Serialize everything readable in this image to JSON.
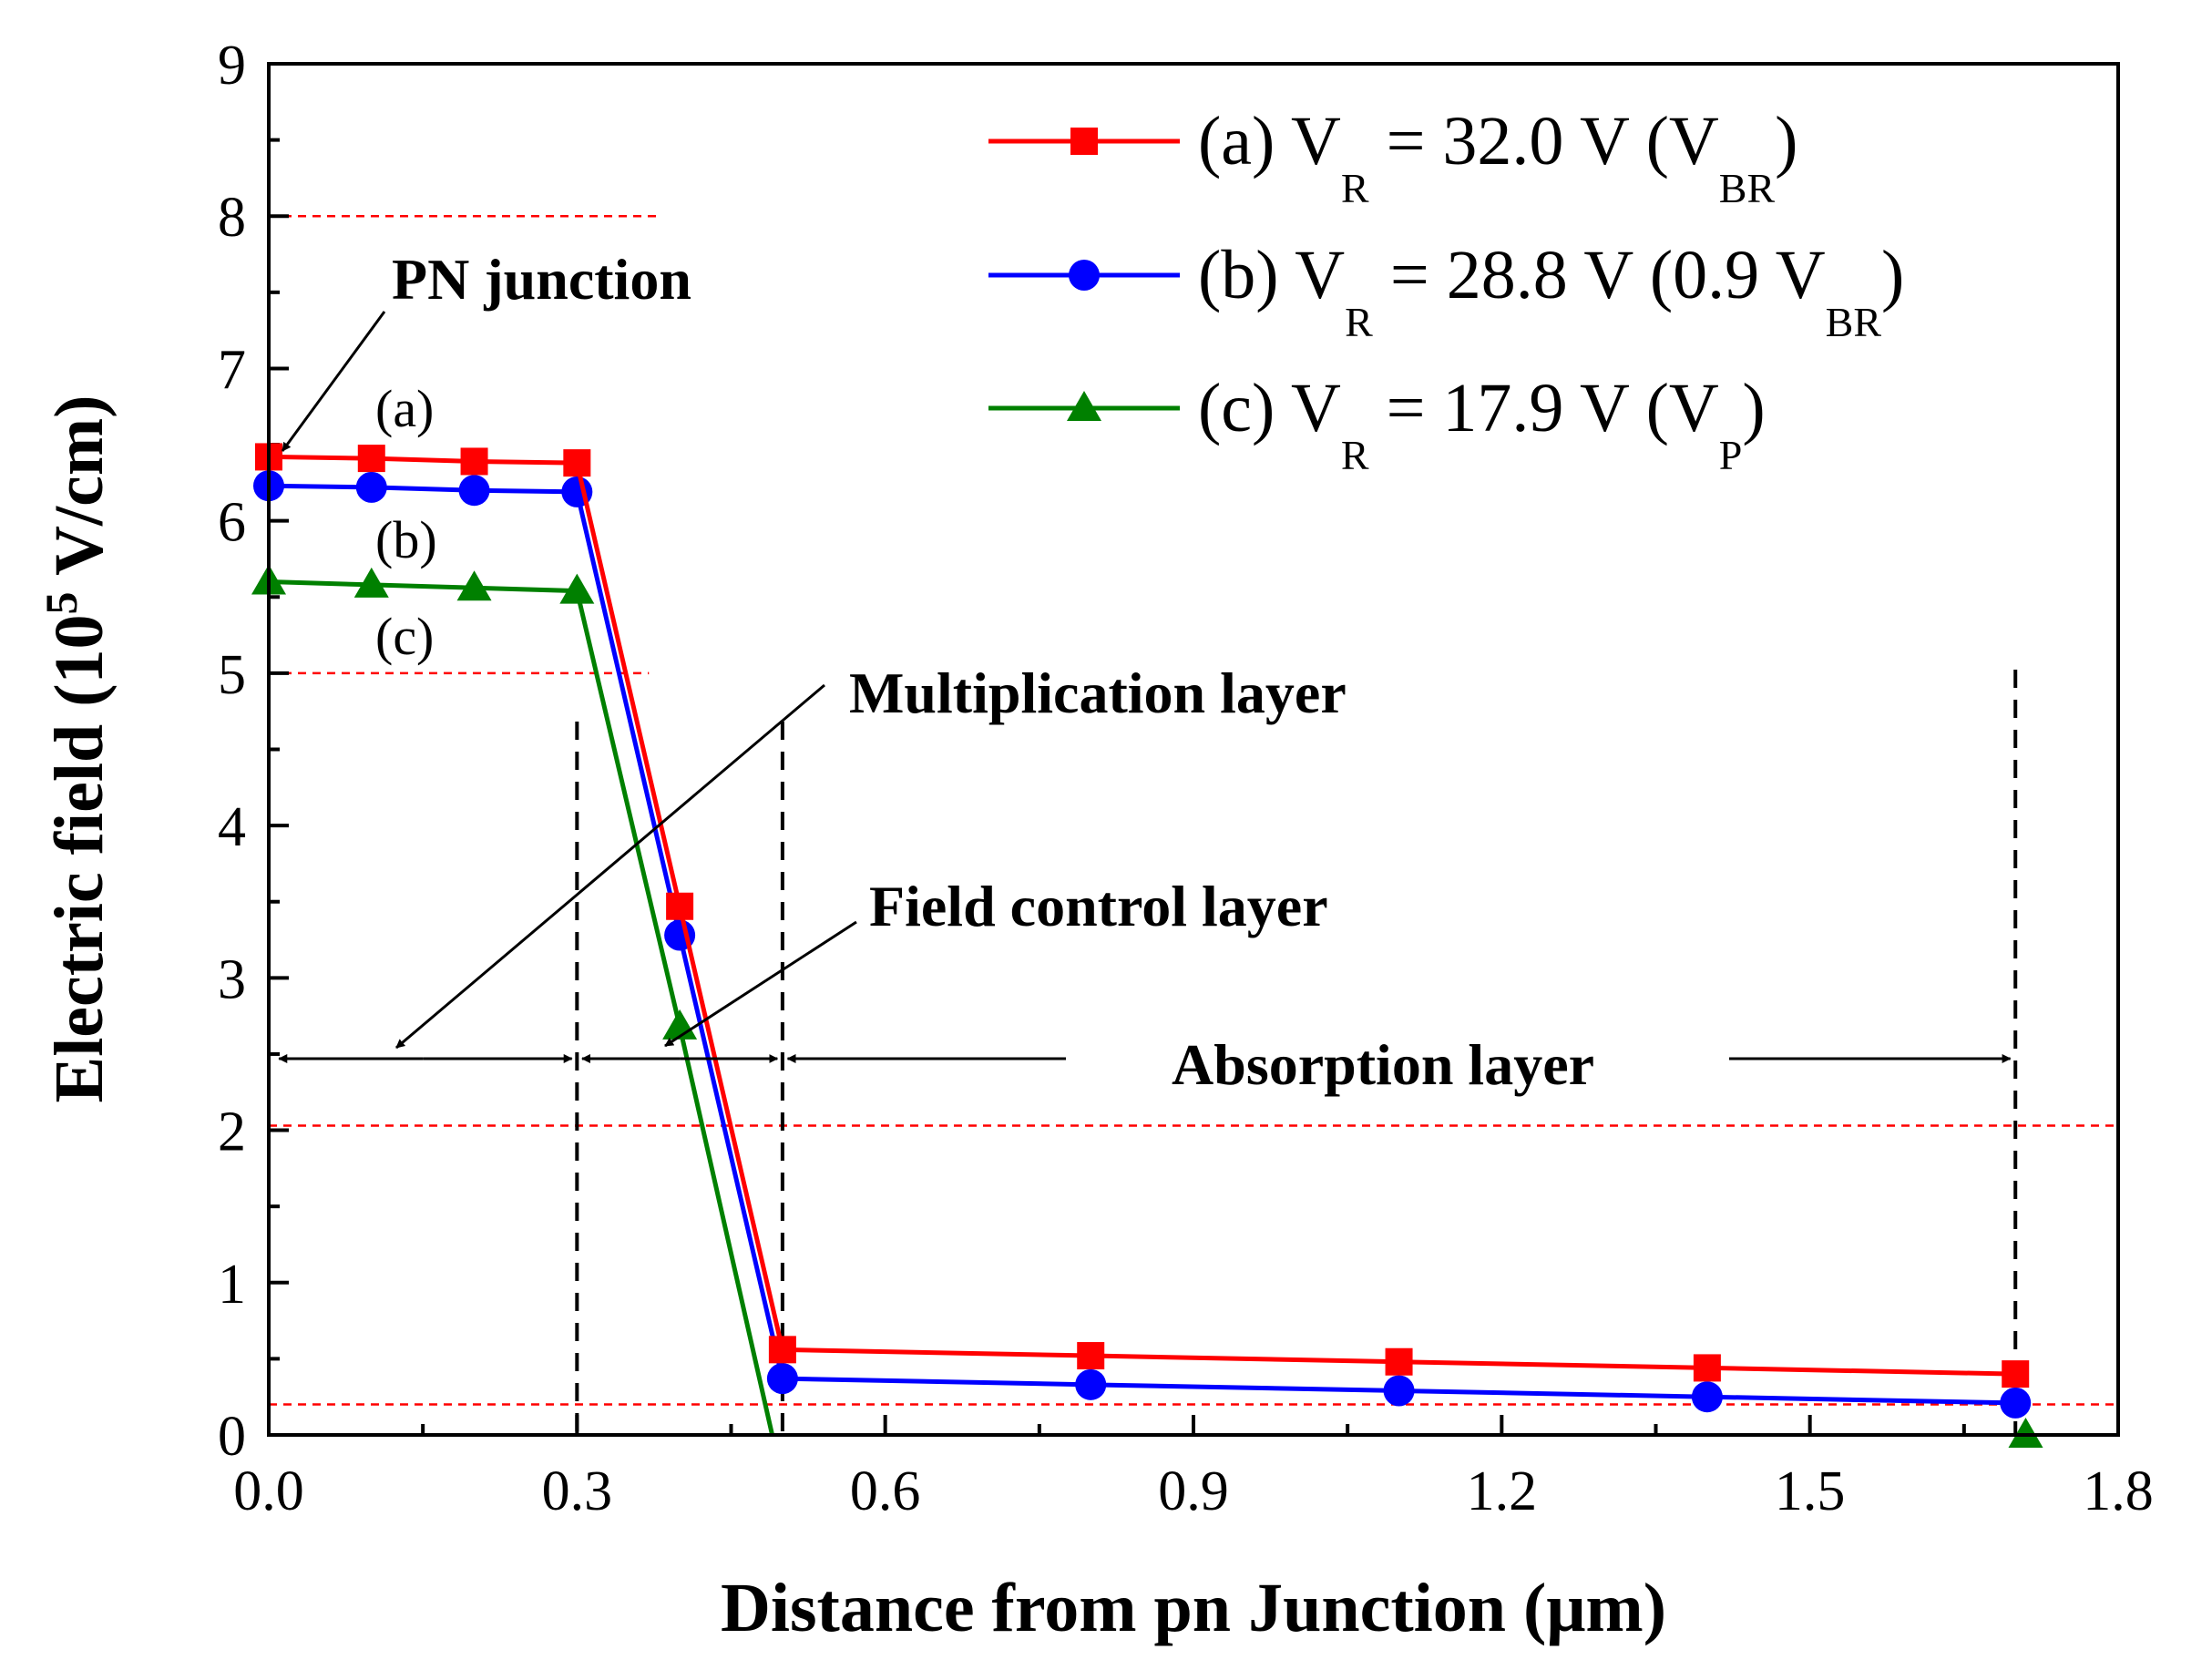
{
  "chart_data": {
    "type": "line",
    "xlabel": "Distance from pn Junction (μm)",
    "ylabel_main": "Electric field (10",
    "ylabel_sup": "5",
    "ylabel_tail": " V/cm)",
    "xlim": [
      0.0,
      1.8
    ],
    "ylim": [
      0,
      9
    ],
    "xticks": [
      0.0,
      0.3,
      0.6,
      0.9,
      1.2,
      1.5,
      1.8
    ],
    "xtick_labels": [
      "0.0",
      "0.3",
      "0.6",
      "0.9",
      "1.2",
      "1.5",
      "1.8"
    ],
    "yticks": [
      0,
      1,
      2,
      3,
      4,
      5,
      6,
      7,
      8,
      9
    ],
    "ytick_labels": [
      "0",
      "1",
      "2",
      "3",
      "4",
      "5",
      "6",
      "7",
      "8",
      "9"
    ],
    "series": [
      {
        "name": "(a) VR = 32.0 V (VBR)",
        "legend_parts": [
          "(a) V",
          "R",
          " = 32.0 V (V",
          "BR",
          ")"
        ],
        "color": "#ff0000",
        "marker": "square",
        "x": [
          0.0,
          0.1,
          0.2,
          0.3,
          0.4,
          0.5,
          0.8,
          1.1,
          1.4,
          1.7
        ],
        "y": [
          6.42,
          6.41,
          6.39,
          6.38,
          3.47,
          0.56,
          0.52,
          0.48,
          0.44,
          0.4
        ]
      },
      {
        "name": "(b) VR = 28.8 V (0.9 VBR)",
        "legend_parts": [
          "(b) V",
          "R",
          " = 28.8 V (0.9 V",
          "BR",
          ")"
        ],
        "color": "#0000ff",
        "marker": "circle",
        "x": [
          0.0,
          0.1,
          0.2,
          0.3,
          0.4,
          0.5,
          0.8,
          1.1,
          1.4,
          1.7
        ],
        "y": [
          6.23,
          6.22,
          6.2,
          6.19,
          3.28,
          0.37,
          0.33,
          0.29,
          0.25,
          0.21
        ]
      },
      {
        "name": "(c) VR = 17.9 V (VP)",
        "legend_parts": [
          "(c) V",
          "R",
          " = 17.9 V (V",
          "P",
          ")"
        ],
        "color": "#008000",
        "marker": "triangle",
        "x": [
          0.0,
          0.1,
          0.2,
          0.3,
          0.4,
          0.49
        ],
        "y": [
          5.6,
          5.58,
          5.56,
          5.54,
          2.68,
          0.0
        ],
        "extra_marker": {
          "x": 1.71,
          "y": 0.0
        }
      }
    ],
    "reference_lines": [
      {
        "y": 8.0,
        "x_range": [
          0.0,
          0.38
        ]
      },
      {
        "y": 5.0,
        "x_range": [
          0.0,
          0.37
        ]
      },
      {
        "y": 2.03,
        "x_range": [
          0.0,
          1.8
        ]
      },
      {
        "y": 0.2,
        "x_range": [
          0.0,
          1.8
        ]
      }
    ],
    "region_boundaries": [
      0.3,
      0.5,
      1.7
    ],
    "region_arrows_y": 2.47,
    "annotations": {
      "pn_junction": "PN junction",
      "multiplication": "Multiplication layer",
      "field_control": "Field control layer",
      "absorption": "Absorption layer",
      "tag_a": "(a)",
      "tag_b": "(b)",
      "tag_c": "(c)"
    },
    "legend_position": "top-right"
  }
}
